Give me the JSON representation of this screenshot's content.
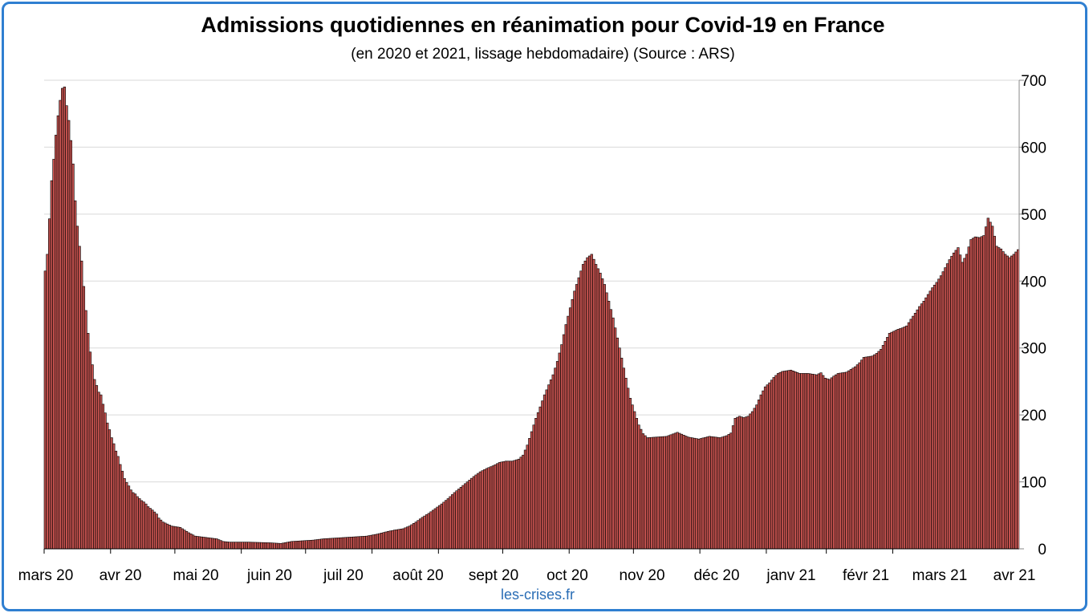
{
  "chart_data": {
    "type": "bar",
    "title": "Admissions quotidiennes en réanimation pour Covid-19 en France",
    "subtitle": "(en 2020 et 2021, lissage hebdomadaire) (Source : ARS)",
    "credit": "les-crises.fr",
    "ylim": [
      0,
      700
    ],
    "y_ticks": [
      0,
      100,
      200,
      300,
      400,
      500,
      600,
      700
    ],
    "y_axis_side": "right",
    "grid": true,
    "x_tick_labels": [
      "mars 20",
      "avr 20",
      "mai 20",
      "juin 20",
      "juil 20",
      "août 20",
      "sept 20",
      "oct 20",
      "nov 20",
      "déc 20",
      "janv 21",
      "févr 21",
      "mars 21",
      "avr 21"
    ],
    "colors": {
      "bar_fill": "#c0504d",
      "bar_stroke": "#000000",
      "frame": "#2f7fd1",
      "credit": "#2a6db5"
    },
    "keyframes": [
      [
        0,
        415
      ],
      [
        1,
        440
      ],
      [
        2,
        493
      ],
      [
        3,
        550
      ],
      [
        4,
        582
      ],
      [
        5,
        618
      ],
      [
        6,
        647
      ],
      [
        7,
        670
      ],
      [
        8,
        688
      ],
      [
        9,
        690
      ],
      [
        10,
        662
      ],
      [
        11,
        640
      ],
      [
        12,
        610
      ],
      [
        13,
        575
      ],
      [
        14,
        520
      ],
      [
        15,
        482
      ],
      [
        16,
        452
      ],
      [
        17,
        430
      ],
      [
        18,
        392
      ],
      [
        19,
        356
      ],
      [
        20,
        322
      ],
      [
        21,
        294
      ],
      [
        22,
        275
      ],
      [
        23,
        253
      ],
      [
        24,
        244
      ],
      [
        25,
        234
      ],
      [
        26,
        230
      ],
      [
        27,
        216
      ],
      [
        28,
        203
      ],
      [
        29,
        188
      ],
      [
        30,
        178
      ],
      [
        31,
        166
      ],
      [
        32,
        157
      ],
      [
        33,
        146
      ],
      [
        34,
        138
      ],
      [
        35,
        126
      ],
      [
        36,
        116
      ],
      [
        37,
        105
      ],
      [
        38,
        99
      ],
      [
        39,
        94
      ],
      [
        40,
        88
      ],
      [
        41,
        84
      ],
      [
        42,
        82
      ],
      [
        43,
        78
      ],
      [
        44,
        75
      ],
      [
        45,
        72
      ],
      [
        46,
        70
      ],
      [
        47,
        67
      ],
      [
        48,
        63
      ],
      [
        50,
        58
      ],
      [
        52,
        52
      ],
      [
        53,
        46
      ],
      [
        55,
        40
      ],
      [
        57,
        37
      ],
      [
        59,
        34
      ],
      [
        61,
        33
      ],
      [
        63,
        32
      ],
      [
        65,
        28
      ],
      [
        67,
        24
      ],
      [
        70,
        19
      ],
      [
        75,
        17
      ],
      [
        80,
        15
      ],
      [
        83,
        11
      ],
      [
        86,
        10
      ],
      [
        95,
        10
      ],
      [
        105,
        9
      ],
      [
        110,
        8
      ],
      [
        115,
        11
      ],
      [
        120,
        12
      ],
      [
        125,
        13
      ],
      [
        130,
        15
      ],
      [
        140,
        17
      ],
      [
        150,
        19
      ],
      [
        155,
        22
      ],
      [
        160,
        26
      ],
      [
        163,
        28
      ],
      [
        167,
        30
      ],
      [
        170,
        34
      ],
      [
        173,
        40
      ],
      [
        176,
        47
      ],
      [
        179,
        53
      ],
      [
        182,
        60
      ],
      [
        185,
        67
      ],
      [
        188,
        75
      ],
      [
        191,
        84
      ],
      [
        194,
        92
      ],
      [
        197,
        100
      ],
      [
        200,
        108
      ],
      [
        203,
        115
      ],
      [
        206,
        120
      ],
      [
        209,
        124
      ],
      [
        212,
        129
      ],
      [
        215,
        131
      ],
      [
        218,
        131
      ],
      [
        221,
        134
      ],
      [
        223,
        140
      ],
      [
        225,
        155
      ],
      [
        227,
        175
      ],
      [
        229,
        195
      ],
      [
        231,
        212
      ],
      [
        233,
        230
      ],
      [
        235,
        245
      ],
      [
        237,
        260
      ],
      [
        239,
        280
      ],
      [
        241,
        305
      ],
      [
        243,
        335
      ],
      [
        245,
        360
      ],
      [
        247,
        385
      ],
      [
        249,
        405
      ],
      [
        251,
        425
      ],
      [
        253,
        435
      ],
      [
        255,
        440
      ],
      [
        257,
        425
      ],
      [
        259,
        412
      ],
      [
        261,
        395
      ],
      [
        263,
        370
      ],
      [
        265,
        345
      ],
      [
        267,
        315
      ],
      [
        269,
        285
      ],
      [
        271,
        255
      ],
      [
        273,
        225
      ],
      [
        275,
        205
      ],
      [
        277,
        185
      ],
      [
        279,
        172
      ],
      [
        281,
        166
      ],
      [
        290,
        168
      ],
      [
        295,
        174
      ],
      [
        300,
        167
      ],
      [
        305,
        164
      ],
      [
        310,
        168
      ],
      [
        315,
        166
      ],
      [
        318,
        169
      ],
      [
        320,
        173
      ],
      [
        322,
        195
      ],
      [
        324,
        198
      ],
      [
        326,
        196
      ],
      [
        328,
        198
      ],
      [
        330,
        205
      ],
      [
        332,
        215
      ],
      [
        334,
        230
      ],
      [
        336,
        242
      ],
      [
        338,
        248
      ],
      [
        340,
        256
      ],
      [
        342,
        262
      ],
      [
        344,
        265
      ],
      [
        348,
        267
      ],
      [
        352,
        262
      ],
      [
        356,
        262
      ],
      [
        360,
        260
      ],
      [
        362,
        263
      ],
      [
        364,
        255
      ],
      [
        366,
        253
      ],
      [
        368,
        258
      ],
      [
        370,
        262
      ],
      [
        374,
        264
      ],
      [
        376,
        268
      ],
      [
        378,
        272
      ],
      [
        380,
        278
      ],
      [
        382,
        286
      ],
      [
        386,
        288
      ],
      [
        388,
        292
      ],
      [
        390,
        298
      ],
      [
        392,
        310
      ],
      [
        394,
        322
      ],
      [
        396,
        325
      ],
      [
        398,
        328
      ],
      [
        400,
        330
      ],
      [
        402,
        333
      ],
      [
        404,
        343
      ],
      [
        406,
        352
      ],
      [
        408,
        362
      ],
      [
        410,
        370
      ],
      [
        412,
        380
      ],
      [
        414,
        390
      ],
      [
        416,
        398
      ],
      [
        418,
        408
      ],
      [
        420,
        420
      ],
      [
        422,
        432
      ],
      [
        424,
        442
      ],
      [
        426,
        450
      ],
      [
        428,
        428
      ],
      [
        430,
        440
      ],
      [
        432,
        462
      ],
      [
        434,
        466
      ],
      [
        436,
        465
      ],
      [
        438,
        468
      ],
      [
        440,
        494
      ],
      [
        442,
        482
      ],
      [
        444,
        452
      ],
      [
        446,
        448
      ],
      [
        448,
        440
      ],
      [
        450,
        435
      ],
      [
        452,
        440
      ],
      [
        454,
        447
      ]
    ]
  }
}
